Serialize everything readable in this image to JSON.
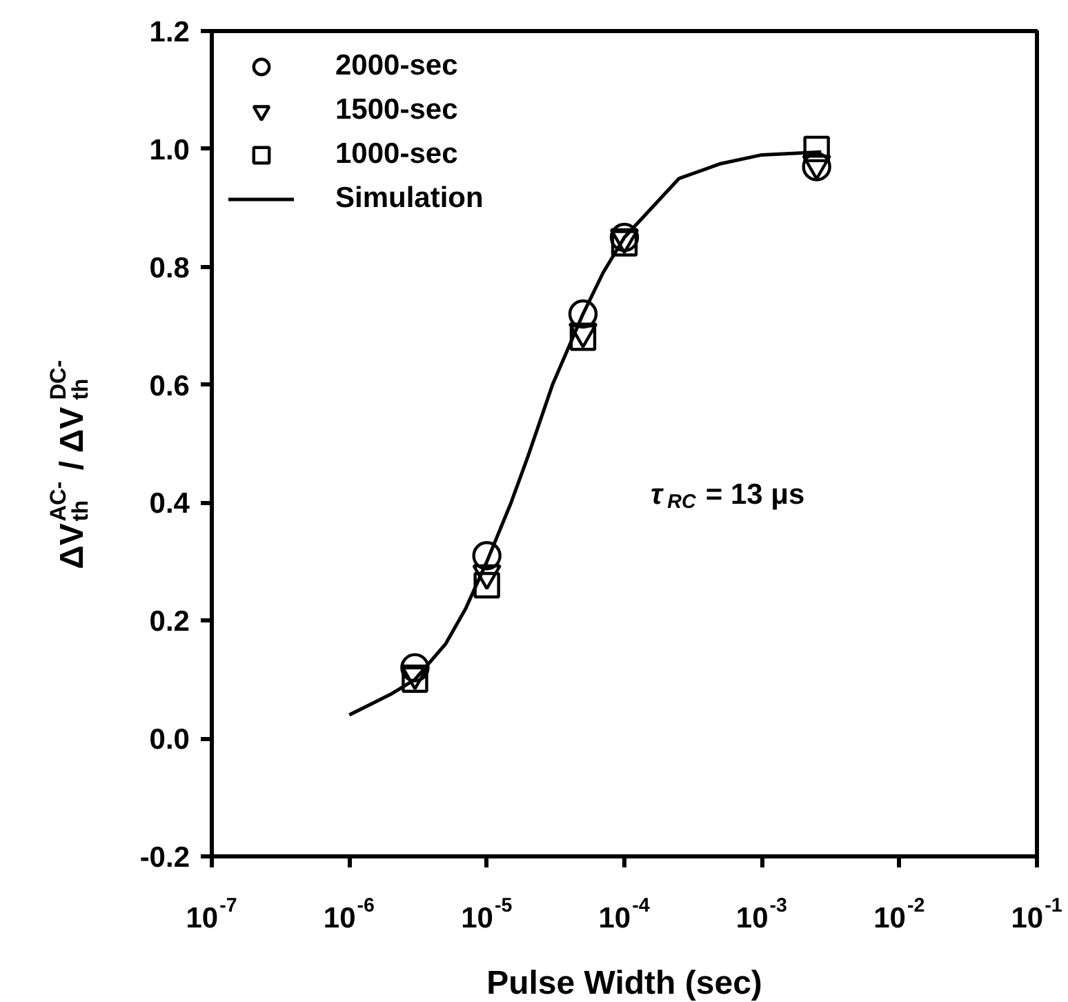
{
  "chart_data": {
    "type": "scatter",
    "xlabel": "Pulse Width (sec)",
    "ylabel": "ΔV$_{th}$$^{AC-}$ / ΔV$_{th}$$^{DC-}$",
    "log": "x",
    "xlim": [
      1e-07,
      0.1
    ],
    "xticks": [
      {
        "value": 1e-07,
        "label": "10$^{-7}$"
      },
      {
        "value": 1e-06,
        "label": "10$^{-6}$"
      },
      {
        "value": 1e-05,
        "label": "10$^{-5}$"
      },
      {
        "value": 0.0001,
        "label": "10$^{-4}$"
      },
      {
        "value": 0.001,
        "label": "10$^{-3}$"
      },
      {
        "value": 0.01,
        "label": "10$^{-2}$"
      },
      {
        "value": 0.1,
        "label": "10$^{-1}$"
      }
    ],
    "ylim": [
      -0.2,
      1.2
    ],
    "yticks": [
      {
        "value": -0.2,
        "label": "-0.2"
      },
      {
        "value": 0.0,
        "label": "0.0"
      },
      {
        "value": 0.2,
        "label": "0.2"
      },
      {
        "value": 0.4,
        "label": "0.4"
      },
      {
        "value": 0.6,
        "label": "0.6"
      },
      {
        "value": 0.8,
        "label": "0.8"
      },
      {
        "value": 1.0,
        "label": "1.0"
      },
      {
        "value": 1.2,
        "label": "1.2"
      }
    ],
    "grid": false,
    "legend": "top left",
    "series": [
      {
        "name": "2000-sec",
        "marker": "circle",
        "color": "#000000",
        "x": [
          3e-06,
          1e-05,
          5e-05,
          0.0001,
          0.0025
        ],
        "values": [
          0.12,
          0.31,
          0.72,
          0.85,
          0.97
        ]
      },
      {
        "name": "1500-sec",
        "marker": "triangle",
        "color": "#000000",
        "x": [
          3e-06,
          1e-05,
          5e-05,
          0.0001,
          0.0025
        ],
        "values": [
          0.11,
          0.28,
          0.69,
          0.85,
          0.975
        ]
      },
      {
        "name": "1000-sec",
        "marker": "square",
        "color": "#000000",
        "x": [
          3e-06,
          1e-05,
          5e-05,
          0.0001,
          0.0025
        ],
        "values": [
          0.1,
          0.26,
          0.68,
          0.84,
          1.0
        ]
      },
      {
        "name": "Simulation",
        "type": "line",
        "line_style": "solid",
        "color": "#000000",
        "x": [
          1e-06,
          2e-06,
          3e-06,
          5e-06,
          7e-06,
          1e-05,
          1.5e-05,
          2e-05,
          3e-05,
          5e-05,
          7e-05,
          0.0001,
          0.00025,
          0.0005,
          0.001,
          0.0027
        ],
        "values": [
          0.04,
          0.075,
          0.1,
          0.16,
          0.22,
          0.3,
          0.4,
          0.48,
          0.6,
          0.72,
          0.79,
          0.85,
          0.95,
          0.975,
          0.99,
          0.995
        ]
      }
    ],
    "annotations": [
      "τ$_{RC}$ = 13 μs"
    ]
  }
}
